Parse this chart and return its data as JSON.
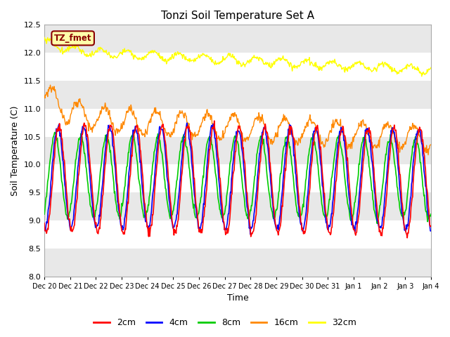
{
  "title": "Tonzi Soil Temperature Set A",
  "xlabel": "Time",
  "ylabel": "Soil Temperature (C)",
  "ylim": [
    8.0,
    12.5
  ],
  "yticks": [
    8.0,
    8.5,
    9.0,
    9.5,
    10.0,
    10.5,
    11.0,
    11.5,
    12.0,
    12.5
  ],
  "label_text": "TZ_fmet",
  "label_bg": "#FFFFAA",
  "label_fg": "#8B0000",
  "colors": {
    "2cm": "#FF0000",
    "4cm": "#0000FF",
    "8cm": "#00CC00",
    "16cm": "#FF8800",
    "32cm": "#FFFF00"
  },
  "legend_labels": [
    "2cm",
    "4cm",
    "8cm",
    "16cm",
    "32cm"
  ],
  "legend_colors": [
    "#FF0000",
    "#0000FF",
    "#00CC00",
    "#FF8800",
    "#FFFF00"
  ],
  "band_color": "#E8E8E8",
  "bg_color": "#FFFFFF",
  "num_days": 15,
  "samples_per_day": 48,
  "base_2": 9.75,
  "amp_2": 0.95,
  "trend_2": -0.003,
  "phase_2": -2.0,
  "base_4": 9.78,
  "amp_4": 0.9,
  "trend_4": -0.003,
  "phase_4": -1.7,
  "base_8": 9.8,
  "amp_8": 0.72,
  "trend_8": -0.003,
  "phase_8": -1.0,
  "base_16": 10.85,
  "amp_16": 0.22,
  "trend_16": -0.025,
  "phase_16": -0.5,
  "base_32": 12.05,
  "amp_32": 0.07,
  "trend_32": -0.024,
  "phase_32": 0.3
}
